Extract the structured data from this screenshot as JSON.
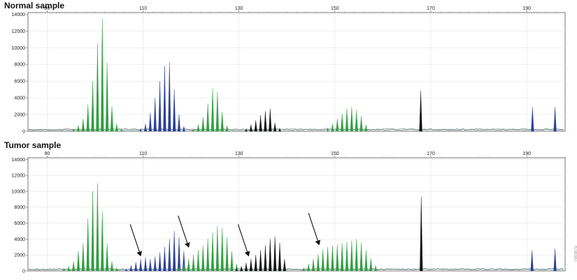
{
  "panels": [
    {
      "title": "Normal sample",
      "chart_data": {
        "type": "line",
        "xlabel": "",
        "ylabel": "",
        "xlim": [
          86,
          198
        ],
        "ylim": [
          0,
          14200
        ],
        "x_ticks": [
          90,
          110,
          130,
          150,
          170,
          190
        ],
        "y_ticks": [
          0,
          2000,
          4000,
          6000,
          8000,
          10000,
          12000,
          14000
        ],
        "grid": true,
        "peak_groups": [
          {
            "color": "#2e9e3e",
            "peaks": [
              [
                95.5,
                300
              ],
              [
                96.5,
                700
              ],
              [
                97.5,
                1500
              ],
              [
                98.5,
                3200
              ],
              [
                99.5,
                6000
              ],
              [
                100.5,
                10500
              ],
              [
                101.5,
                13500
              ],
              [
                102.5,
                8200
              ],
              [
                103.5,
                3000
              ],
              [
                104.5,
                900
              ],
              [
                105.5,
                300
              ]
            ]
          },
          {
            "color": "#2a3f98",
            "peaks": [
              [
                109.5,
                300
              ],
              [
                110.5,
                900
              ],
              [
                111.5,
                2200
              ],
              [
                112.5,
                4000
              ],
              [
                113.5,
                6000
              ],
              [
                114.5,
                7800
              ],
              [
                115.5,
                8300
              ],
              [
                116.5,
                5000
              ],
              [
                117.5,
                2000
              ],
              [
                118.5,
                600
              ]
            ]
          },
          {
            "color": "#2e9e3e",
            "peaks": [
              [
                120.5,
                300
              ],
              [
                121.5,
                800
              ],
              [
                122.5,
                1700
              ],
              [
                123.5,
                3300
              ],
              [
                124.5,
                5100
              ],
              [
                125.5,
                4700
              ],
              [
                126.5,
                2300
              ],
              [
                127.5,
                700
              ]
            ]
          },
          {
            "color": "#111111",
            "peaks": [
              [
                131.5,
                300
              ],
              [
                132.5,
                800
              ],
              [
                133.5,
                1300
              ],
              [
                134.5,
                1900
              ],
              [
                135.5,
                2400
              ],
              [
                136.5,
                2700
              ],
              [
                137.5,
                1000
              ],
              [
                138.5,
                400
              ]
            ]
          },
          {
            "color": "#2e9e3e",
            "peaks": [
              [
                148.5,
                400
              ],
              [
                149.5,
                900
              ],
              [
                150.5,
                1500
              ],
              [
                151.5,
                2100
              ],
              [
                152.5,
                2700
              ],
              [
                153.5,
                2900
              ],
              [
                154.5,
                2500
              ],
              [
                155.5,
                1800
              ],
              [
                156.5,
                800
              ]
            ]
          },
          {
            "color": "#111111",
            "peaks": [
              [
                167.9,
                4800
              ]
            ]
          },
          {
            "color": "#2a3f98",
            "peaks": [
              [
                191.2,
                2900
              ]
            ]
          },
          {
            "color": "#2a3f98",
            "peaks": [
              [
                195.9,
                2900
              ]
            ]
          }
        ],
        "arrows": []
      }
    },
    {
      "title": "Tumor sample",
      "chart_data": {
        "type": "line",
        "xlabel": "",
        "ylabel": "",
        "xlim": [
          86,
          198
        ],
        "ylim": [
          0,
          14200
        ],
        "x_ticks": [
          90,
          110,
          130,
          150,
          170,
          190
        ],
        "y_ticks": [
          0,
          2000,
          4000,
          6000,
          8000,
          10000,
          12000,
          14000
        ],
        "grid": true,
        "peak_groups": [
          {
            "color": "#2e9e3e",
            "peaks": [
              [
                93.5,
                300
              ],
              [
                94.5,
                600
              ],
              [
                95.5,
                1200
              ],
              [
                96.5,
                2500
              ],
              [
                97.5,
                3500
              ],
              [
                98.5,
                6600
              ],
              [
                99.5,
                10000
              ],
              [
                100.5,
                11000
              ],
              [
                101.5,
                7500
              ],
              [
                102.5,
                3500
              ],
              [
                103.5,
                1200
              ],
              [
                104.5,
                400
              ]
            ]
          },
          {
            "color": "#2a3f98",
            "peaks": [
              [
                106.5,
                300
              ],
              [
                107.5,
                700
              ],
              [
                108.5,
                1100
              ],
              [
                109.5,
                1500
              ],
              [
                110.5,
                1700
              ],
              [
                111.5,
                1500
              ],
              [
                112.5,
                1800
              ],
              [
                113.5,
                2300
              ],
              [
                114.5,
                3000
              ],
              [
                115.5,
                4000
              ],
              [
                116.5,
                5000
              ],
              [
                117.5,
                4200
              ],
              [
                118.5,
                2500
              ],
              [
                119.5,
                1000
              ]
            ]
          },
          {
            "color": "#2e9e3e",
            "peaks": [
              [
                117.5,
                500
              ],
              [
                118.5,
                900
              ],
              [
                119.5,
                1500
              ],
              [
                120.5,
                2000
              ],
              [
                121.5,
                2600
              ],
              [
                122.5,
                3200
              ],
              [
                123.5,
                4000
              ],
              [
                124.5,
                4800
              ],
              [
                125.5,
                5600
              ],
              [
                126.5,
                5400
              ],
              [
                127.5,
                4200
              ],
              [
                128.5,
                2500
              ],
              [
                129.5,
                900
              ]
            ]
          },
          {
            "color": "#111111",
            "peaks": [
              [
                129.5,
                300
              ],
              [
                130.5,
                600
              ],
              [
                131.5,
                1000
              ],
              [
                132.5,
                1500
              ],
              [
                133.5,
                2000
              ],
              [
                134.5,
                2600
              ],
              [
                135.5,
                3200
              ],
              [
                136.5,
                4000
              ],
              [
                137.5,
                4300
              ],
              [
                138.5,
                3500
              ],
              [
                139.5,
                1500
              ]
            ]
          },
          {
            "color": "#2e9e3e",
            "peaks": [
              [
                143.5,
                400
              ],
              [
                144.5,
                900
              ],
              [
                145.5,
                1500
              ],
              [
                146.5,
                2100
              ],
              [
                147.5,
                2700
              ],
              [
                148.5,
                3000
              ],
              [
                149.5,
                3200
              ],
              [
                150.5,
                3300
              ],
              [
                151.5,
                3500
              ],
              [
                152.5,
                3600
              ],
              [
                153.5,
                3800
              ],
              [
                154.5,
                4000
              ],
              [
                155.5,
                3500
              ],
              [
                156.5,
                2600
              ],
              [
                157.5,
                1600
              ],
              [
                158.5,
                700
              ]
            ]
          },
          {
            "color": "#111111",
            "peaks": [
              [
                168.0,
                9300
              ]
            ]
          },
          {
            "color": "#2a3f98",
            "peaks": [
              [
                191.1,
                2600
              ]
            ]
          },
          {
            "color": "#2a3f98",
            "peaks": [
              [
                195.9,
                2800
              ]
            ]
          }
        ],
        "arrows": [
          {
            "x": 109.5,
            "y": 1900
          },
          {
            "x": 119.5,
            "y": 3000
          },
          {
            "x": 132.0,
            "y": 1900
          },
          {
            "x": 146.7,
            "y": 3300
          }
        ]
      }
    }
  ],
  "watermark": "1983674"
}
